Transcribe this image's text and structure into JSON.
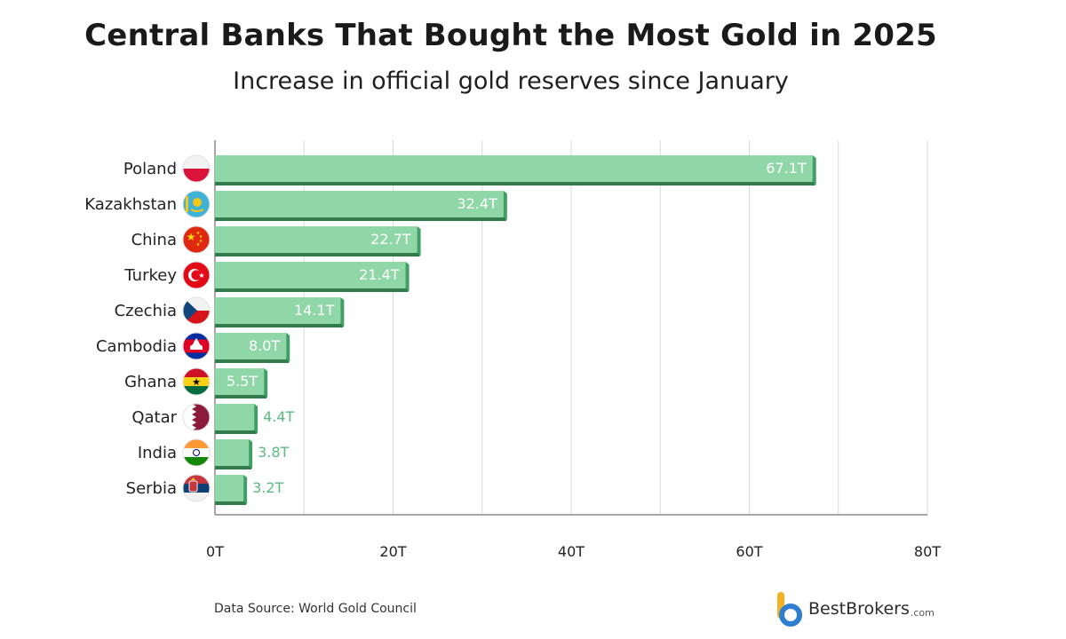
{
  "colors": {
    "bar_face": "#8fd7a6",
    "bar_side": "#3f9f64",
    "bar_bottom": "#2f7d4b",
    "value_outside": "#5cba80",
    "grid": "#d9d9d9",
    "axis": "#8c8c8c"
  },
  "chart_data": {
    "type": "bar",
    "orientation": "horizontal",
    "title": "Central Banks That Bought the Most Gold in 2025",
    "subtitle": "Increase in official gold reserves since January",
    "categories": [
      "Poland",
      "Kazakhstan",
      "China",
      "Turkey",
      "Czechia",
      "Cambodia",
      "Ghana",
      "Qatar",
      "India",
      "Serbia"
    ],
    "values": [
      67.1,
      32.4,
      22.7,
      21.4,
      14.1,
      8.0,
      5.5,
      4.4,
      3.8,
      3.2
    ],
    "value_labels": [
      "67.1T",
      "32.4T",
      "22.7T",
      "21.4T",
      "14.1T",
      "8.0T",
      "5.5T",
      "4.4T",
      "3.8T",
      "3.2T"
    ],
    "flags": [
      "poland-flag-icon",
      "kazakhstan-flag-icon",
      "china-flag-icon",
      "turkey-flag-icon",
      "czechia-flag-icon",
      "cambodia-flag-icon",
      "ghana-flag-icon",
      "qatar-flag-icon",
      "india-flag-icon",
      "serbia-flag-icon"
    ],
    "xlim": [
      0,
      80
    ],
    "xticks": [
      0,
      20,
      40,
      60,
      80
    ],
    "xtick_labels": [
      "0T",
      "20T",
      "40T",
      "60T",
      "80T"
    ],
    "grid": true
  },
  "footer": {
    "source": "Data Source: World Gold Council",
    "brand_name": "BestBrokers",
    "brand_domain": ".com"
  }
}
